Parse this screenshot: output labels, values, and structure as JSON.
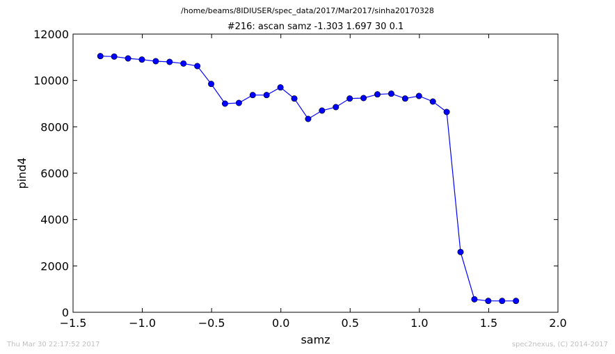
{
  "figure": {
    "suptitle": "/home/beams/8IDIUSER/spec_data/2017/Mar2017/sinha20170328",
    "footer_left": "Thu Mar 30 22:17:52 2017",
    "footer_right": "spec2nexus, (C) 2014-2017"
  },
  "chart_data": {
    "type": "line",
    "title": "#216: ascan  samz -1.303 1.697  30 0.1",
    "xlabel": "samz",
    "ylabel": "pind4",
    "xlim": [
      -1.5,
      2.0
    ],
    "ylim": [
      0,
      12000
    ],
    "xticks": [
      -1.5,
      -1.0,
      -0.5,
      0.0,
      0.5,
      1.0,
      1.5,
      2.0
    ],
    "xtick_labels": [
      "−1.5",
      "−1.0",
      "−0.5",
      "0.0",
      "0.5",
      "1.0",
      "1.5",
      "2.0"
    ],
    "yticks": [
      0,
      2000,
      4000,
      6000,
      8000,
      10000,
      12000
    ],
    "ytick_labels": [
      "0",
      "2000",
      "4000",
      "6000",
      "8000",
      "10000",
      "12000"
    ],
    "grid": false,
    "series": [
      {
        "color": "#0000ff",
        "marker": "circle",
        "x": [
          -1.303,
          -1.203,
          -1.103,
          -1.003,
          -0.903,
          -0.803,
          -0.703,
          -0.603,
          -0.503,
          -0.403,
          -0.303,
          -0.203,
          -0.103,
          -0.003,
          0.097,
          0.197,
          0.297,
          0.397,
          0.497,
          0.597,
          0.697,
          0.797,
          0.897,
          0.997,
          1.097,
          1.197,
          1.297,
          1.397,
          1.497,
          1.597,
          1.697
        ],
        "y": [
          11050,
          11030,
          10950,
          10900,
          10830,
          10800,
          10730,
          10620,
          9850,
          9000,
          9030,
          9370,
          9370,
          9700,
          9220,
          8340,
          8700,
          8850,
          9220,
          9240,
          9400,
          9430,
          9220,
          9330,
          9090,
          8640,
          2600,
          560,
          490,
          490,
          490
        ]
      }
    ]
  }
}
